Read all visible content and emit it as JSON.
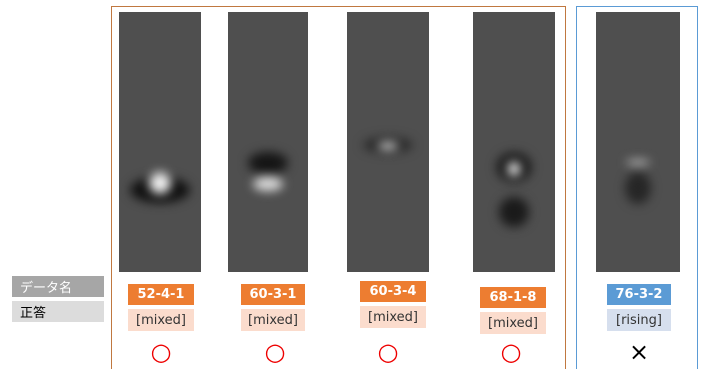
{
  "row_labels": [
    "データ名",
    "正答"
  ],
  "items": [
    {
      "name": "52-4-1",
      "answer": "[mixed]",
      "result": "○"
    },
    {
      "name": "60-3-1",
      "answer": "[mixed]",
      "result": "○"
    },
    {
      "name": "60-3-4",
      "answer": "[mixed]",
      "result": "○"
    },
    {
      "name": "68-1-8",
      "answer": "[mixed]",
      "result": "○"
    },
    {
      "name": "76-3-2",
      "answer": "[rising]",
      "result": "×"
    }
  ]
}
